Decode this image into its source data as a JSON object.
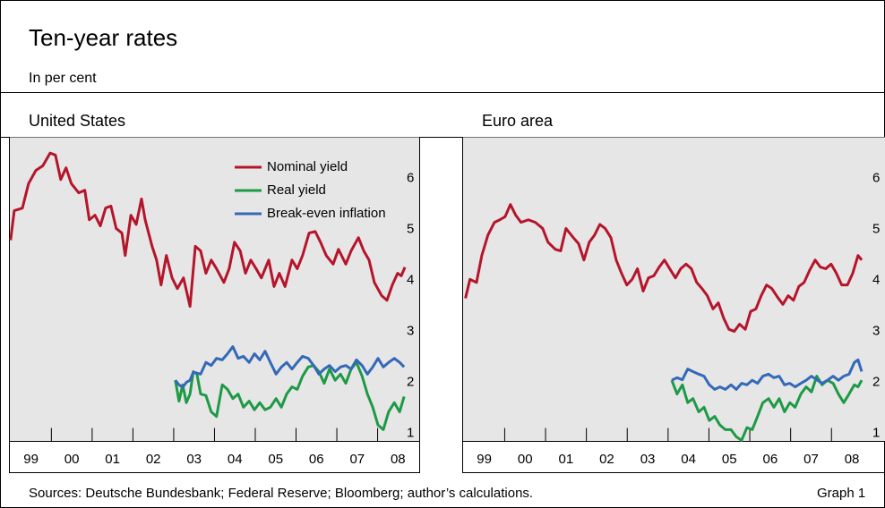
{
  "title": "Ten-year rates",
  "subtitle": "In per cent",
  "source": "Sources: Deutsche Bundesbank; Federal Reserve; Bloomberg; author’s calculations.",
  "graph_label": "Graph 1",
  "chart_data": [
    {
      "type": "line",
      "title": "United States",
      "legend": "upper right",
      "xlim": [
        1998.96,
        2009.02
      ],
      "ylim": [
        0.84,
        6.81
      ],
      "yticks": [
        1,
        2,
        3,
        4,
        5,
        6
      ],
      "xticks": [
        {
          "value": 1999.5,
          "label": "99"
        },
        {
          "value": 2000.5,
          "label": "00"
        },
        {
          "value": 2001.5,
          "label": "01"
        },
        {
          "value": 2002.5,
          "label": "02"
        },
        {
          "value": 2003.5,
          "label": "03"
        },
        {
          "value": 2004.5,
          "label": "04"
        },
        {
          "value": 2005.5,
          "label": "05"
        },
        {
          "value": 2006.5,
          "label": "06"
        },
        {
          "value": 2007.5,
          "label": "07"
        },
        {
          "value": 2008.5,
          "label": "08"
        }
      ],
      "series": [
        {
          "name": "Nominal yield",
          "color": "#b5152b",
          "x": [
            1999.0,
            1999.09,
            1999.29,
            1999.44,
            1999.62,
            1999.79,
            1999.97,
            2000.1,
            2000.23,
            2000.36,
            2000.49,
            2000.67,
            2000.82,
            2000.93,
            2001.07,
            2001.2,
            2001.33,
            2001.46,
            2001.59,
            2001.73,
            2001.81,
            2001.95,
            2002.08,
            2002.21,
            2002.3,
            2002.47,
            2002.58,
            2002.69,
            2002.82,
            2002.96,
            2003.09,
            2003.24,
            2003.4,
            2003.53,
            2003.66,
            2003.79,
            2003.92,
            2004.05,
            2004.23,
            2004.36,
            2004.49,
            2004.63,
            2004.76,
            2004.89,
            2005.02,
            2005.15,
            2005.33,
            2005.46,
            2005.59,
            2005.73,
            2005.9,
            2006.03,
            2006.16,
            2006.32,
            2006.47,
            2006.6,
            2006.74,
            2006.91,
            2007.04,
            2007.22,
            2007.35,
            2007.53,
            2007.66,
            2007.79,
            2007.92,
            2008.1,
            2008.23,
            2008.36,
            2008.49,
            2008.58,
            2008.67
          ],
          "values": [
            4.79,
            5.37,
            5.42,
            5.9,
            6.16,
            6.25,
            6.5,
            6.46,
            5.98,
            6.21,
            5.9,
            5.72,
            5.77,
            5.19,
            5.28,
            5.07,
            5.42,
            5.46,
            5.02,
            4.93,
            4.49,
            5.28,
            5.1,
            5.6,
            5.19,
            4.67,
            4.4,
            3.91,
            4.49,
            4.05,
            3.84,
            4.05,
            3.49,
            4.67,
            4.58,
            4.14,
            4.4,
            4.23,
            3.96,
            4.23,
            4.75,
            4.58,
            4.14,
            4.4,
            4.23,
            4.05,
            4.4,
            3.88,
            4.14,
            3.88,
            4.4,
            4.23,
            4.49,
            4.93,
            4.96,
            4.75,
            4.49,
            4.32,
            4.61,
            4.32,
            4.58,
            4.84,
            4.58,
            4.4,
            3.96,
            3.7,
            3.61,
            3.91,
            4.14,
            4.09,
            4.26
          ]
        },
        {
          "name": "Real yield",
          "color": "#1e9a46",
          "x": [
            2003.04,
            2003.13,
            2003.22,
            2003.31,
            2003.4,
            2003.48,
            2003.57,
            2003.66,
            2003.79,
            2003.92,
            2004.05,
            2004.19,
            2004.32,
            2004.45,
            2004.58,
            2004.71,
            2004.85,
            2004.98,
            2005.11,
            2005.24,
            2005.37,
            2005.51,
            2005.64,
            2005.77,
            2005.9,
            2006.03,
            2006.16,
            2006.3,
            2006.43,
            2006.56,
            2006.69,
            2006.82,
            2006.96,
            2007.09,
            2007.22,
            2007.35,
            2007.48,
            2007.62,
            2007.75,
            2007.88,
            2008.01,
            2008.14,
            2008.27,
            2008.41,
            2008.54,
            2008.65
          ],
          "values": [
            2.04,
            1.63,
            1.95,
            1.6,
            1.77,
            2.21,
            2.16,
            1.77,
            1.74,
            1.42,
            1.33,
            1.95,
            1.86,
            1.68,
            1.77,
            1.51,
            1.63,
            1.46,
            1.6,
            1.46,
            1.51,
            1.68,
            1.51,
            1.77,
            1.91,
            1.86,
            2.12,
            2.3,
            2.33,
            2.21,
            1.98,
            2.26,
            2.04,
            2.16,
            1.98,
            2.26,
            2.39,
            2.12,
            1.77,
            1.51,
            1.16,
            1.07,
            1.42,
            1.6,
            1.42,
            1.72
          ]
        },
        {
          "name": "Break-even inflation",
          "color": "#3469b8",
          "x": [
            2003.04,
            2003.13,
            2003.22,
            2003.31,
            2003.4,
            2003.48,
            2003.57,
            2003.66,
            2003.79,
            2003.92,
            2004.05,
            2004.19,
            2004.32,
            2004.45,
            2004.58,
            2004.71,
            2004.85,
            2004.98,
            2005.11,
            2005.24,
            2005.37,
            2005.51,
            2005.64,
            2005.77,
            2005.9,
            2006.03,
            2006.16,
            2006.3,
            2006.43,
            2006.56,
            2006.69,
            2006.82,
            2006.96,
            2007.09,
            2007.22,
            2007.35,
            2007.48,
            2007.62,
            2007.75,
            2007.88,
            2008.01,
            2008.14,
            2008.27,
            2008.41,
            2008.54,
            2008.65
          ],
          "values": [
            2.04,
            1.95,
            1.9,
            2.0,
            2.04,
            2.2,
            2.18,
            2.16,
            2.39,
            2.33,
            2.47,
            2.44,
            2.56,
            2.7,
            2.47,
            2.51,
            2.39,
            2.56,
            2.44,
            2.61,
            2.39,
            2.16,
            2.3,
            2.39,
            2.26,
            2.39,
            2.51,
            2.47,
            2.33,
            2.16,
            2.26,
            2.33,
            2.21,
            2.3,
            2.33,
            2.26,
            2.44,
            2.33,
            2.16,
            2.3,
            2.47,
            2.3,
            2.39,
            2.47,
            2.39,
            2.3
          ]
        }
      ]
    },
    {
      "type": "line",
      "title": "Euro area",
      "xlim": [
        1998.96,
        2009.31
      ],
      "ylim": [
        0.84,
        6.81
      ],
      "yticks": [
        1,
        2,
        3,
        4,
        5,
        6
      ],
      "xticks": [
        {
          "value": 1999.5,
          "label": "99"
        },
        {
          "value": 2000.5,
          "label": "00"
        },
        {
          "value": 2001.5,
          "label": "01"
        },
        {
          "value": 2002.5,
          "label": "02"
        },
        {
          "value": 2003.5,
          "label": "03"
        },
        {
          "value": 2004.5,
          "label": "04"
        },
        {
          "value": 2005.5,
          "label": "05"
        },
        {
          "value": 2006.5,
          "label": "06"
        },
        {
          "value": 2007.5,
          "label": "07"
        },
        {
          "value": 2008.5,
          "label": "08"
        }
      ],
      "series": [
        {
          "color": "#b5152b",
          "x": [
            1999.04,
            1999.15,
            1999.31,
            1999.44,
            1999.59,
            1999.75,
            1999.88,
            2000.01,
            2000.14,
            2000.27,
            2000.4,
            2000.58,
            2000.75,
            2000.93,
            2001.06,
            2001.24,
            2001.37,
            2001.5,
            2001.68,
            2001.81,
            2001.94,
            2002.07,
            2002.2,
            2002.33,
            2002.46,
            2002.6,
            2002.73,
            2002.86,
            2002.99,
            2003.12,
            2003.25,
            2003.39,
            2003.52,
            2003.65,
            2003.78,
            2003.91,
            2004.04,
            2004.18,
            2004.31,
            2004.44,
            2004.57,
            2004.7,
            2004.83,
            2004.96,
            2005.1,
            2005.23,
            2005.36,
            2005.49,
            2005.62,
            2005.75,
            2005.89,
            2006.02,
            2006.15,
            2006.28,
            2006.41,
            2006.54,
            2006.68,
            2006.81,
            2006.94,
            2007.07,
            2007.2,
            2007.33,
            2007.46,
            2007.6,
            2007.73,
            2007.86,
            2007.99,
            2008.12,
            2008.25,
            2008.39,
            2008.52,
            2008.65,
            2008.74
          ],
          "values": [
            3.65,
            4.02,
            3.96,
            4.49,
            4.89,
            5.14,
            5.19,
            5.25,
            5.49,
            5.28,
            5.14,
            5.19,
            5.14,
            5.02,
            4.75,
            4.61,
            4.58,
            5.02,
            4.84,
            4.72,
            4.4,
            4.75,
            4.89,
            5.1,
            5.02,
            4.84,
            4.4,
            4.14,
            3.91,
            4.02,
            4.23,
            3.79,
            4.05,
            4.09,
            4.26,
            4.4,
            4.23,
            4.05,
            4.23,
            4.32,
            4.23,
            3.96,
            3.84,
            3.7,
            3.44,
            3.56,
            3.26,
            3.04,
            3.0,
            3.14,
            3.04,
            3.39,
            3.44,
            3.7,
            3.91,
            3.84,
            3.67,
            3.53,
            3.7,
            3.61,
            3.88,
            3.96,
            4.19,
            4.4,
            4.26,
            4.23,
            4.32,
            4.14,
            3.91,
            3.91,
            4.14,
            4.49,
            4.4
          ]
        },
        {
          "color": "#1e9a46",
          "x": [
            2004.09,
            2004.22,
            2004.35,
            2004.48,
            2004.61,
            2004.75,
            2004.88,
            2005.01,
            2005.14,
            2005.27,
            2005.4,
            2005.54,
            2005.67,
            2005.8,
            2005.93,
            2006.06,
            2006.19,
            2006.32,
            2006.46,
            2006.59,
            2006.72,
            2006.85,
            2006.98,
            2007.11,
            2007.25,
            2007.38,
            2007.51,
            2007.64,
            2007.77,
            2007.9,
            2008.04,
            2008.17,
            2008.3,
            2008.43,
            2008.56,
            2008.65,
            2008.74
          ],
          "values": [
            2.04,
            1.77,
            1.95,
            1.6,
            1.68,
            1.42,
            1.51,
            1.25,
            1.33,
            1.16,
            1.07,
            1.07,
            0.93,
            0.86,
            1.11,
            1.07,
            1.33,
            1.6,
            1.68,
            1.51,
            1.68,
            1.42,
            1.6,
            1.51,
            1.77,
            1.91,
            1.81,
            2.12,
            1.95,
            2.04,
            1.98,
            1.77,
            1.6,
            1.77,
            1.95,
            1.91,
            2.04
          ]
        },
        {
          "color": "#3469b8",
          "x": [
            2004.09,
            2004.22,
            2004.35,
            2004.48,
            2004.61,
            2004.75,
            2004.88,
            2005.01,
            2005.14,
            2005.27,
            2005.4,
            2005.54,
            2005.67,
            2005.8,
            2005.93,
            2006.06,
            2006.19,
            2006.32,
            2006.46,
            2006.59,
            2006.72,
            2006.85,
            2006.98,
            2007.11,
            2007.25,
            2007.38,
            2007.51,
            2007.64,
            2007.77,
            2007.9,
            2008.04,
            2008.17,
            2008.3,
            2008.43,
            2008.56,
            2008.65,
            2008.74
          ],
          "values": [
            2.04,
            2.09,
            2.05,
            2.26,
            2.21,
            2.16,
            2.12,
            1.95,
            1.86,
            1.91,
            1.86,
            1.95,
            1.86,
            1.98,
            1.95,
            2.04,
            1.98,
            2.12,
            2.16,
            2.09,
            2.12,
            1.95,
            1.98,
            1.91,
            1.98,
            2.04,
            2.12,
            2.05,
            1.98,
            2.04,
            2.12,
            2.04,
            2.12,
            2.16,
            2.39,
            2.44,
            2.21
          ]
        }
      ]
    }
  ]
}
